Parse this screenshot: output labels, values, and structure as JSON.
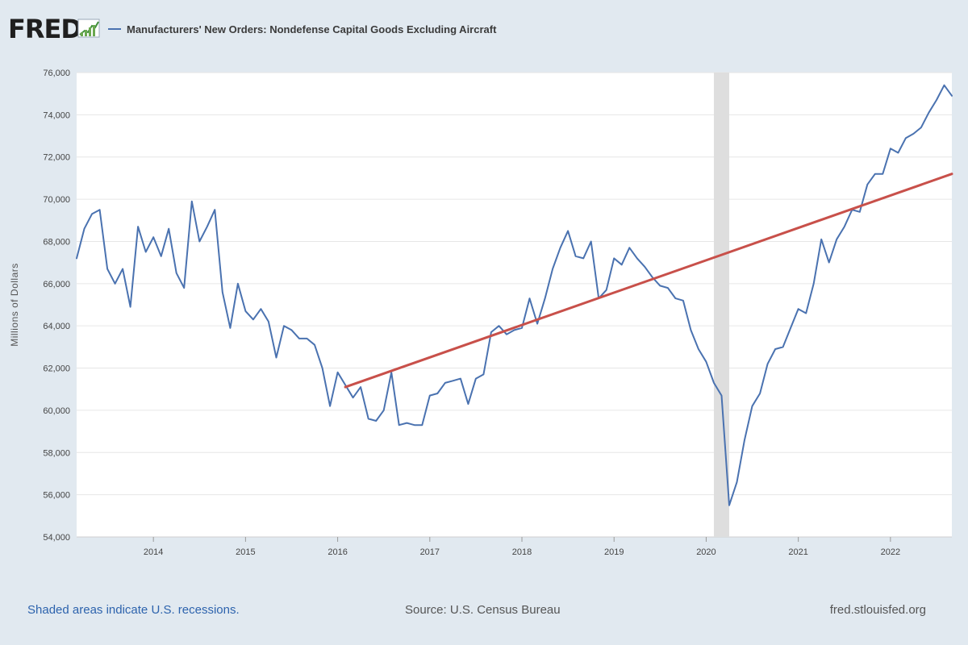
{
  "header": {
    "logo_text": "FRED",
    "legend_label": "Manufacturers' New Orders: Nondefense Capital Goods Excluding Aircraft"
  },
  "footer": {
    "note": "Shaded areas indicate U.S. recessions.",
    "source": "Source: U.S. Census Bureau",
    "site": "fred.stlouisfed.org"
  },
  "colors": {
    "series": "#4a72b0",
    "trend": "#c8504a",
    "recession": "#dedede",
    "plot_bg": "#ffffff",
    "page_bg": "#e1e9f0"
  },
  "chart_data": {
    "type": "line",
    "ylabel": "Millions of Dollars",
    "ylim": [
      54000,
      76000
    ],
    "yticks": [
      54000,
      56000,
      58000,
      60000,
      62000,
      64000,
      66000,
      68000,
      70000,
      72000,
      74000,
      76000
    ],
    "ytick_labels": [
      "54,000",
      "56,000",
      "58,000",
      "60,000",
      "62,000",
      "64,000",
      "66,000",
      "68,000",
      "70,000",
      "72,000",
      "74,000",
      "76,000"
    ],
    "xlim": [
      "2013-03",
      "2022-09"
    ],
    "xticks": [
      "2014-01",
      "2015-01",
      "2016-01",
      "2017-01",
      "2018-01",
      "2019-01",
      "2020-01",
      "2021-01",
      "2022-01"
    ],
    "xtick_labels": [
      "2014",
      "2015",
      "2016",
      "2017",
      "2018",
      "2019",
      "2020",
      "2021",
      "2022"
    ],
    "grid": "horizontal",
    "recessions": [
      {
        "start": "2020-02",
        "end": "2020-04"
      }
    ],
    "series": [
      {
        "name": "Manufacturers' New Orders: Nondefense Capital Goods Excluding Aircraft",
        "x": [
          "2013-03",
          "2013-04",
          "2013-05",
          "2013-06",
          "2013-07",
          "2013-08",
          "2013-09",
          "2013-10",
          "2013-11",
          "2013-12",
          "2014-01",
          "2014-02",
          "2014-03",
          "2014-04",
          "2014-05",
          "2014-06",
          "2014-07",
          "2014-08",
          "2014-09",
          "2014-10",
          "2014-11",
          "2014-12",
          "2015-01",
          "2015-02",
          "2015-03",
          "2015-04",
          "2015-05",
          "2015-06",
          "2015-07",
          "2015-08",
          "2015-09",
          "2015-10",
          "2015-11",
          "2015-12",
          "2016-01",
          "2016-02",
          "2016-03",
          "2016-04",
          "2016-05",
          "2016-06",
          "2016-07",
          "2016-08",
          "2016-09",
          "2016-10",
          "2016-11",
          "2016-12",
          "2017-01",
          "2017-02",
          "2017-03",
          "2017-04",
          "2017-05",
          "2017-06",
          "2017-07",
          "2017-08",
          "2017-09",
          "2017-10",
          "2017-11",
          "2017-12",
          "2018-01",
          "2018-02",
          "2018-03",
          "2018-04",
          "2018-05",
          "2018-06",
          "2018-07",
          "2018-08",
          "2018-09",
          "2018-10",
          "2018-11",
          "2018-12",
          "2019-01",
          "2019-02",
          "2019-03",
          "2019-04",
          "2019-05",
          "2019-06",
          "2019-07",
          "2019-08",
          "2019-09",
          "2019-10",
          "2019-11",
          "2019-12",
          "2020-01",
          "2020-02",
          "2020-03",
          "2020-04",
          "2020-05",
          "2020-06",
          "2020-07",
          "2020-08",
          "2020-09",
          "2020-10",
          "2020-11",
          "2020-12",
          "2021-01",
          "2021-02",
          "2021-03",
          "2021-04",
          "2021-05",
          "2021-06",
          "2021-07",
          "2021-08",
          "2021-09",
          "2021-10",
          "2021-11",
          "2021-12",
          "2022-01",
          "2022-02",
          "2022-03",
          "2022-04",
          "2022-05",
          "2022-06",
          "2022-07",
          "2022-08",
          "2022-09"
        ],
        "values": [
          67200,
          68600,
          69300,
          69500,
          66700,
          66000,
          66700,
          64900,
          68700,
          67500,
          68200,
          67300,
          68600,
          66500,
          65800,
          69900,
          68000,
          68700,
          69500,
          65600,
          63900,
          66000,
          64700,
          64300,
          64800,
          64200,
          62500,
          64000,
          63800,
          63400,
          63400,
          63100,
          62000,
          60200,
          61800,
          61200,
          60600,
          61100,
          59600,
          59500,
          60000,
          61800,
          59300,
          59400,
          59300,
          59300,
          60700,
          60800,
          61300,
          61400,
          61500,
          60300,
          61500,
          61700,
          63700,
          64000,
          63600,
          63800,
          63900,
          65300,
          64100,
          65300,
          66700,
          67700,
          68500,
          67300,
          67200,
          68000,
          65300,
          65700,
          67200,
          66900,
          67700,
          67200,
          66800,
          66300,
          65900,
          65800,
          65300,
          65200,
          63800,
          62900,
          62300,
          61300,
          60700,
          55500,
          56600,
          58600,
          60200,
          60800,
          62200,
          62900,
          63000,
          63900,
          64800,
          64600,
          66000,
          68100,
          67000,
          68100,
          68700,
          69500,
          69400,
          70700,
          71200,
          71200,
          72400,
          72200,
          72900,
          73100,
          73400,
          74100,
          74700,
          75400,
          74900
        ]
      },
      {
        "name": "",
        "x": [
          "2016-02",
          "2022-09"
        ],
        "values": [
          61100,
          71200
        ]
      }
    ]
  }
}
